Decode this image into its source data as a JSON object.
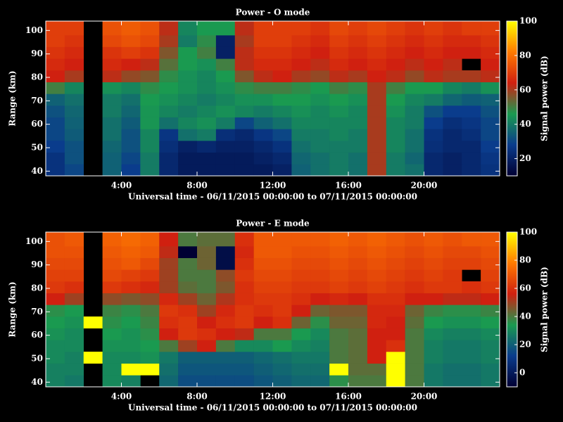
{
  "chart_data": [
    {
      "type": "heatmap",
      "title": "Power - O mode",
      "xlabel": "Universal time - 06/11/2015 00:00:00 to 07/11/2015 00:00:00",
      "ylabel": "Range (km)",
      "colorbar_label": "Signal power (dB)",
      "xbins": [
        0,
        1,
        2,
        3,
        4,
        5,
        6,
        7,
        8,
        9,
        10,
        11,
        12,
        13,
        14,
        15,
        16,
        17,
        18,
        19,
        20,
        21,
        22,
        23,
        24
      ],
      "ybins": [
        38,
        43,
        48,
        53,
        58,
        63,
        68,
        73,
        78,
        83,
        88,
        93,
        98,
        104
      ],
      "xlim": [
        0,
        24
      ],
      "ylim": [
        38,
        104
      ],
      "xticks": [
        {
          "value": 4,
          "label": "4:00"
        },
        {
          "value": 8,
          "label": "8:00"
        },
        {
          "value": 12,
          "label": "12:00"
        },
        {
          "value": 16,
          "label": "16:00"
        },
        {
          "value": 20,
          "label": "20:00"
        }
      ],
      "yticks": [
        40,
        50,
        60,
        70,
        80,
        90,
        100
      ],
      "zlim": [
        10,
        100
      ],
      "zticks": [
        20,
        40,
        60,
        80,
        100
      ],
      "colormap": [
        "#000033",
        "#0a3c8c",
        "#1a9a50",
        "#d02010",
        "#ff7a00",
        "#ffff00"
      ],
      "values": [
        [
          25,
          30,
          null,
          35,
          28,
          40,
          22,
          18,
          18,
          18,
          18,
          18,
          20,
          35,
          38,
          40,
          38,
          60,
          40,
          38,
          22,
          20,
          22,
          25
        ],
        [
          25,
          32,
          null,
          35,
          30,
          40,
          22,
          18,
          18,
          18,
          18,
          20,
          22,
          36,
          38,
          40,
          38,
          60,
          40,
          36,
          22,
          20,
          22,
          26
        ],
        [
          28,
          32,
          null,
          36,
          32,
          42,
          24,
          20,
          22,
          20,
          20,
          22,
          25,
          38,
          40,
          40,
          40,
          60,
          42,
          38,
          24,
          22,
          22,
          28
        ],
        [
          30,
          34,
          null,
          38,
          32,
          42,
          26,
          38,
          40,
          24,
          22,
          26,
          30,
          40,
          40,
          42,
          40,
          60,
          42,
          38,
          25,
          22,
          24,
          30
        ],
        [
          30,
          35,
          null,
          38,
          34,
          45,
          38,
          42,
          44,
          40,
          30,
          35,
          38,
          42,
          42,
          42,
          42,
          60,
          42,
          40,
          28,
          24,
          26,
          30
        ],
        [
          32,
          36,
          null,
          40,
          36,
          45,
          42,
          40,
          42,
          44,
          42,
          40,
          42,
          44,
          42,
          44,
          42,
          60,
          44,
          40,
          32,
          28,
          28,
          32
        ],
        [
          35,
          38,
          null,
          40,
          38,
          46,
          44,
          42,
          40,
          42,
          44,
          44,
          46,
          46,
          44,
          46,
          44,
          60,
          46,
          42,
          40,
          36,
          34,
          35
        ],
        [
          50,
          42,
          null,
          44,
          42,
          48,
          46,
          44,
          42,
          44,
          48,
          50,
          50,
          48,
          46,
          50,
          48,
          60,
          50,
          46,
          46,
          42,
          40,
          44
        ],
        [
          64,
          60,
          null,
          62,
          58,
          56,
          48,
          44,
          42,
          46,
          56,
          62,
          64,
          60,
          58,
          62,
          60,
          64,
          62,
          58,
          62,
          60,
          60,
          62
        ],
        [
          66,
          64,
          null,
          66,
          64,
          62,
          52,
          46,
          44,
          50,
          62,
          66,
          66,
          64,
          62,
          66,
          64,
          66,
          64,
          62,
          64,
          62,
          null,
          64
        ],
        [
          68,
          66,
          null,
          68,
          70,
          68,
          56,
          46,
          50,
          20,
          62,
          68,
          68,
          66,
          64,
          68,
          66,
          68,
          66,
          64,
          66,
          64,
          64,
          66
        ],
        [
          70,
          68,
          null,
          72,
          74,
          72,
          60,
          40,
          48,
          20,
          60,
          70,
          70,
          68,
          66,
          70,
          68,
          70,
          68,
          66,
          68,
          66,
          66,
          68
        ],
        [
          70,
          70,
          null,
          74,
          76,
          74,
          62,
          42,
          46,
          46,
          62,
          70,
          70,
          70,
          68,
          72,
          70,
          72,
          70,
          68,
          70,
          68,
          70,
          70
        ]
      ]
    },
    {
      "type": "heatmap",
      "title": "Power - E mode",
      "xlabel": "Universal time - 06/11/2015 00:00:00 to 07/11/2015 00:00:00",
      "ylabel": "Range (km)",
      "colorbar_label": "Signal power (dB)",
      "xbins": [
        0,
        1,
        2,
        3,
        4,
        5,
        6,
        7,
        8,
        9,
        10,
        11,
        12,
        13,
        14,
        15,
        16,
        17,
        18,
        19,
        20,
        21,
        22,
        23,
        24
      ],
      "ybins": [
        38,
        43,
        48,
        53,
        58,
        63,
        68,
        73,
        78,
        83,
        88,
        93,
        98,
        104
      ],
      "xlim": [
        0,
        24
      ],
      "ylim": [
        38,
        104
      ],
      "xticks": [
        {
          "value": 4,
          "label": "4:00"
        },
        {
          "value": 8,
          "label": "8:00"
        },
        {
          "value": 12,
          "label": "12:00"
        },
        {
          "value": 16,
          "label": "16:00"
        },
        {
          "value": 20,
          "label": "20:00"
        }
      ],
      "yticks": [
        40,
        50,
        60,
        70,
        80,
        90,
        100
      ],
      "zlim": [
        -10,
        100
      ],
      "zticks": [
        0,
        20,
        40,
        60,
        80,
        100
      ],
      "colormap": [
        "#000033",
        "#0a3c8c",
        "#1a9a50",
        "#d02010",
        "#ff7a00",
        "#ffff00"
      ],
      "values": [
        [
          28,
          26,
          null,
          30,
          28,
          null,
          22,
          16,
          16,
          16,
          16,
          18,
          20,
          22,
          22,
          36,
          40,
          40,
          100,
          40,
          26,
          24,
          24,
          26
        ],
        [
          28,
          28,
          null,
          30,
          100,
          100,
          24,
          18,
          18,
          18,
          18,
          20,
          22,
          24,
          24,
          100,
          42,
          42,
          100,
          40,
          26,
          24,
          24,
          26
        ],
        [
          30,
          28,
          100,
          30,
          30,
          32,
          26,
          20,
          20,
          20,
          20,
          22,
          24,
          26,
          26,
          40,
          42,
          56,
          100,
          40,
          28,
          26,
          26,
          28
        ],
        [
          30,
          30,
          null,
          32,
          32,
          34,
          40,
          50,
          56,
          40,
          30,
          30,
          34,
          30,
          28,
          40,
          42,
          56,
          60,
          40,
          28,
          26,
          26,
          28
        ],
        [
          32,
          30,
          null,
          34,
          32,
          36,
          56,
          62,
          60,
          56,
          54,
          40,
          40,
          34,
          30,
          40,
          42,
          56,
          56,
          40,
          30,
          28,
          28,
          30
        ],
        [
          34,
          32,
          100,
          36,
          34,
          38,
          60,
          62,
          56,
          60,
          62,
          56,
          60,
          44,
          36,
          44,
          44,
          58,
          56,
          42,
          34,
          32,
          32,
          34
        ],
        [
          36,
          34,
          null,
          38,
          36,
          40,
          62,
          60,
          50,
          58,
          62,
          60,
          62,
          56,
          44,
          46,
          46,
          58,
          58,
          44,
          38,
          36,
          36,
          38
        ],
        [
          56,
          50,
          null,
          48,
          46,
          48,
          58,
          50,
          44,
          52,
          60,
          62,
          62,
          60,
          56,
          58,
          56,
          60,
          60,
          56,
          56,
          54,
          54,
          56
        ],
        [
          62,
          60,
          null,
          62,
          60,
          58,
          50,
          42,
          40,
          46,
          60,
          64,
          64,
          62,
          62,
          64,
          62,
          64,
          62,
          60,
          62,
          62,
          60,
          62
        ],
        [
          64,
          64,
          null,
          66,
          64,
          62,
          50,
          40,
          40,
          48,
          62,
          66,
          66,
          64,
          64,
          66,
          64,
          66,
          64,
          62,
          64,
          62,
          null,
          64
        ],
        [
          66,
          66,
          null,
          68,
          70,
          66,
          50,
          40,
          44,
          -5,
          60,
          68,
          68,
          66,
          66,
          68,
          66,
          68,
          66,
          64,
          66,
          64,
          64,
          66
        ],
        [
          68,
          68,
          null,
          70,
          72,
          70,
          54,
          -10,
          44,
          -5,
          58,
          70,
          70,
          68,
          68,
          70,
          68,
          70,
          68,
          66,
          68,
          66,
          66,
          68
        ],
        [
          68,
          70,
          null,
          72,
          74,
          72,
          56,
          40,
          42,
          42,
          60,
          70,
          70,
          70,
          70,
          72,
          70,
          72,
          70,
          68,
          70,
          68,
          70,
          70
        ]
      ]
    }
  ]
}
